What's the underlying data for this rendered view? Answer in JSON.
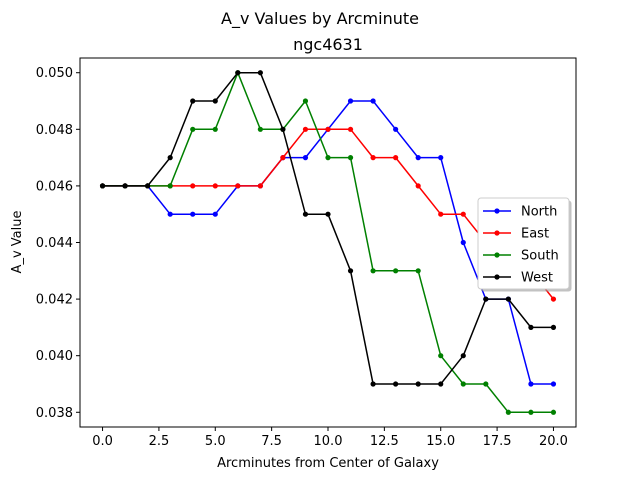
{
  "chart_data": {
    "type": "line",
    "suptitle": "A_v Values by Arcminute",
    "title": "ngc4631",
    "xlabel": "Arcminutes from Center of Galaxy",
    "ylabel": "A_v Value",
    "xlim": [
      -1.0,
      21.0
    ],
    "ylim": [
      0.03748,
      0.05052
    ],
    "xticks": [
      0.0,
      2.5,
      5.0,
      7.5,
      10.0,
      12.5,
      15.0,
      17.5,
      20.0
    ],
    "xtick_labels": [
      "0.0",
      "2.5",
      "5.0",
      "7.5",
      "10.0",
      "12.5",
      "15.0",
      "17.5",
      "20.0"
    ],
    "yticks": [
      0.038,
      0.04,
      0.042,
      0.044,
      0.046,
      0.048,
      0.05
    ],
    "ytick_labels": [
      "0.038",
      "0.040",
      "0.042",
      "0.044",
      "0.046",
      "0.048",
      "0.050"
    ],
    "grid": false,
    "legend_position": "center-right",
    "x": [
      0,
      1,
      2,
      3,
      4,
      5,
      6,
      7,
      8,
      9,
      10,
      11,
      12,
      13,
      14,
      15,
      16,
      17,
      18,
      19,
      20
    ],
    "series": [
      {
        "name": "North",
        "color": "#0000ff",
        "values": [
          0.046,
          0.046,
          0.046,
          0.045,
          0.045,
          0.045,
          0.046,
          0.046,
          0.047,
          0.047,
          0.048,
          0.049,
          0.049,
          0.048,
          0.047,
          0.047,
          0.044,
          0.042,
          0.042,
          0.039,
          0.039
        ]
      },
      {
        "name": "East",
        "color": "#ff0000",
        "values": [
          0.046,
          0.046,
          0.046,
          0.046,
          0.046,
          0.046,
          0.046,
          0.046,
          0.047,
          0.048,
          0.048,
          0.048,
          0.047,
          0.047,
          0.046,
          0.045,
          0.045,
          0.044,
          0.044,
          0.043,
          0.042
        ]
      },
      {
        "name": "South",
        "color": "#008000",
        "values": [
          0.046,
          0.046,
          0.046,
          0.046,
          0.048,
          0.048,
          0.05,
          0.048,
          0.048,
          0.049,
          0.047,
          0.047,
          0.043,
          0.043,
          0.043,
          0.04,
          0.039,
          0.039,
          0.038,
          0.038,
          0.038
        ]
      },
      {
        "name": "West",
        "color": "#000000",
        "values": [
          0.046,
          0.046,
          0.046,
          0.047,
          0.049,
          0.049,
          0.05,
          0.05,
          0.048,
          0.045,
          0.045,
          0.043,
          0.039,
          0.039,
          0.039,
          0.039,
          0.04,
          0.042,
          0.042,
          0.041,
          0.041
        ]
      }
    ]
  }
}
